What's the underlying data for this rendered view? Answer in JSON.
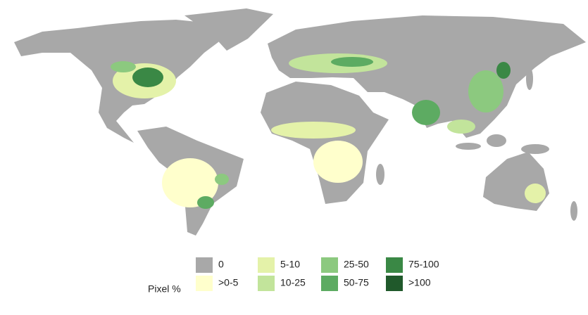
{
  "legend": {
    "title": "Pixel %",
    "items": [
      {
        "label": "0",
        "color": "#a8a8a8"
      },
      {
        "label": ">0-5",
        "color": "#ffffcc"
      },
      {
        "label": "5-10",
        "color": "#e4f2a9"
      },
      {
        "label": "10-25",
        "color": "#c2e49b"
      },
      {
        "label": "25-50",
        "color": "#8cc97f"
      },
      {
        "label": "50-75",
        "color": "#5dab62"
      },
      {
        "label": "75-100",
        "color": "#3a8845"
      },
      {
        "label": ">100",
        "color": "#20592b"
      }
    ]
  }
}
